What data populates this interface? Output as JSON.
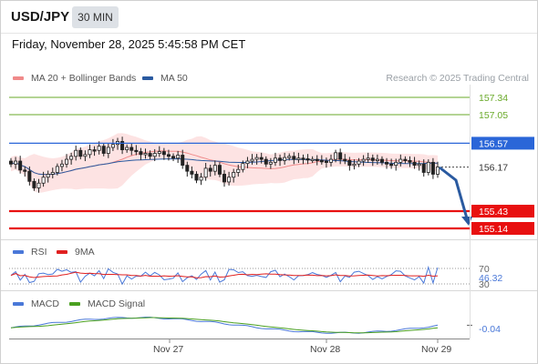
{
  "header": {
    "symbol": "USD/JPY",
    "timeframe": "30 MIN",
    "datetime": "Friday, November 28, 2025 5:45:58 PM CET",
    "credit": "Research © 2025 Trading Central"
  },
  "legend_main": [
    {
      "label": "MA 20 + Bollinger Bands",
      "color": "#f08a8a"
    },
    {
      "label": "MA 50",
      "color": "#2a5aa0"
    }
  ],
  "legend_rsi": [
    {
      "label": "RSI",
      "color": "#4a78d8"
    },
    {
      "label": "9MA",
      "color": "#e02020"
    }
  ],
  "legend_macd": [
    {
      "label": "MACD",
      "color": "#4a78d8"
    },
    {
      "label": "MACD Signal",
      "color": "#4aa020"
    }
  ],
  "colors": {
    "green_level": "#6aaa2a",
    "blue_level": "#2a66d8",
    "red_level": "#e81010",
    "price_tag": "#333333",
    "arrow": "#2a5aa0",
    "candle": "#222222"
  },
  "chart_data": {
    "type": "candlestick",
    "price_levels": [
      {
        "value": 157.34,
        "label": "157.34",
        "kind": "resistance"
      },
      {
        "value": 157.05,
        "label": "157.05",
        "kind": "resistance"
      },
      {
        "value": 156.57,
        "label": "156.57",
        "kind": "pivot"
      },
      {
        "value": 155.43,
        "label": "155.43",
        "kind": "support"
      },
      {
        "value": 155.14,
        "label": "155.14",
        "kind": "support"
      }
    ],
    "last_price": {
      "value": 156.17,
      "label": "156.17"
    },
    "price_range": [
      154.95,
      157.6
    ],
    "x_ticks": [
      "Nov 27",
      "Nov 28",
      "Nov 29"
    ],
    "rsi": {
      "levels": [
        "70",
        "30"
      ],
      "last": "46.32",
      "range": [
        0,
        100
      ]
    },
    "macd": {
      "last": "-0.04"
    },
    "candles_close": [
      156.22,
      156.27,
      156.12,
      156.1,
      155.93,
      155.82,
      155.9,
      156.0,
      156.05,
      156.08,
      156.18,
      156.22,
      156.3,
      156.35,
      156.45,
      156.35,
      156.38,
      156.46,
      156.45,
      156.52,
      156.4,
      156.5,
      156.55,
      156.6,
      156.46,
      156.5,
      156.45,
      156.43,
      156.38,
      156.4,
      156.35,
      156.4,
      156.43,
      156.38,
      156.35,
      156.32,
      156.37,
      156.2,
      156.1,
      156.05,
      155.95,
      156.0,
      156.15,
      156.1,
      156.2,
      156.05,
      155.92,
      156.0,
      156.08,
      156.13,
      156.23,
      156.27,
      156.3,
      156.33,
      156.3,
      156.22,
      156.25,
      156.32,
      156.28,
      156.33,
      156.35,
      156.3,
      156.32,
      156.31,
      156.29,
      156.3,
      156.28,
      156.27,
      156.25,
      156.3,
      156.41,
      156.3,
      156.28,
      156.2,
      156.22,
      156.27,
      156.3,
      156.32,
      156.28,
      156.3,
      156.25,
      156.22,
      156.2,
      156.25,
      156.3,
      156.28,
      156.25,
      156.2,
      156.22,
      156.08,
      156.25,
      156.05,
      156.17
    ]
  }
}
